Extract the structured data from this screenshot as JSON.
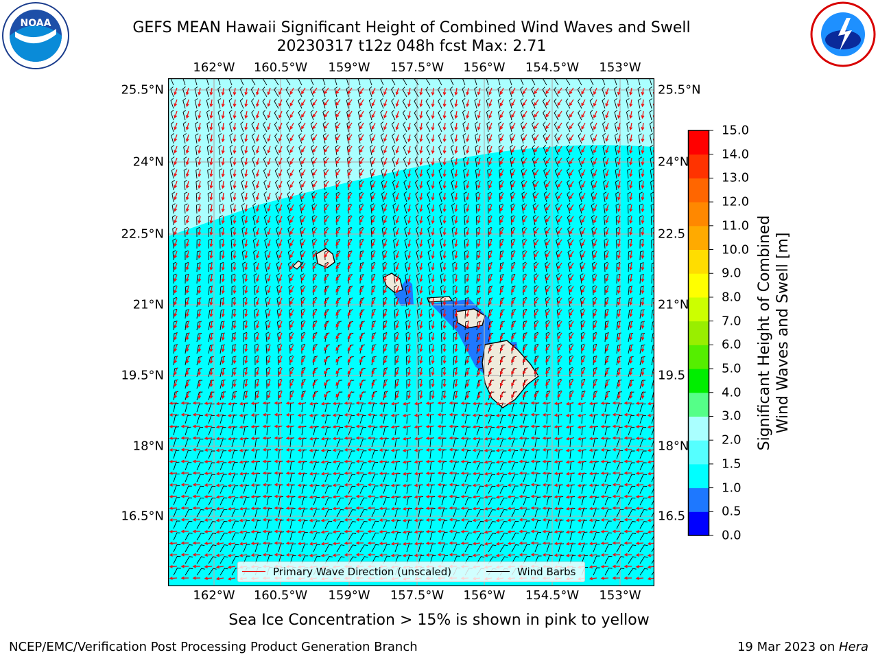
{
  "title_line1": "GEFS MEAN Hawaii Significant Height of Combined Wind Waves and Swell",
  "title_line2": "20230317 t12z 048h fcst   Max: 2.71",
  "logos": {
    "left": "NOAA",
    "right": "NATIONAL WEATHER SERVICE"
  },
  "map": {
    "lon_ticks": [
      "162°W",
      "160.5°W",
      "159°W",
      "157.5°W",
      "156°W",
      "154.5°W",
      "153°W"
    ],
    "lat_ticks": [
      "25.5°N",
      "24°N",
      "22.5°N",
      "21°N",
      "19.5°N",
      "18°N",
      "16.5°N"
    ],
    "lat_ticks_right": [
      "25.5°N",
      "24°N",
      "22.5",
      "21°N",
      "19.5",
      "18°N",
      "16.5"
    ],
    "ocean_color": "#00ffff",
    "high_wave_color": "#aaffff",
    "low_wave_color": "#1e78ff",
    "land_color": "#efebdc",
    "wave_arrow_color": "#ee1111",
    "barb_color": "#000000"
  },
  "legend": {
    "primary_wave": "Primary Wave Direction (unscaled)",
    "wind_barbs": "Wind Barbs"
  },
  "colorbar": {
    "label_line1": "Significant Height of Combined",
    "label_line2": "Wind Waves and Swell [m]",
    "ticks": [
      "0.0",
      "0.5",
      "1.0",
      "1.5",
      "2.0",
      "3.0",
      "4.0",
      "5.0",
      "6.0",
      "7.0",
      "8.0",
      "9.0",
      "10.0",
      "11.0",
      "12.0",
      "13.0",
      "14.0",
      "15.0"
    ],
    "colors": [
      "#0000ff",
      "#1e78ff",
      "#00ffff",
      "#55ffff",
      "#aaffff",
      "#55ff88",
      "#00ee00",
      "#55ee00",
      "#99ee00",
      "#ccff00",
      "#ffff00",
      "#ffdd00",
      "#ffaa00",
      "#ff8800",
      "#ff6600",
      "#ff3300",
      "#ff0000"
    ]
  },
  "note": "Sea Ice Concentration > 15% is shown in pink to yellow",
  "footer_left": "NCEP/EMC/Verification Post Processing Product Generation Branch",
  "footer_right_date": "19 Mar 2023 on ",
  "footer_right_machine": "Hera"
}
